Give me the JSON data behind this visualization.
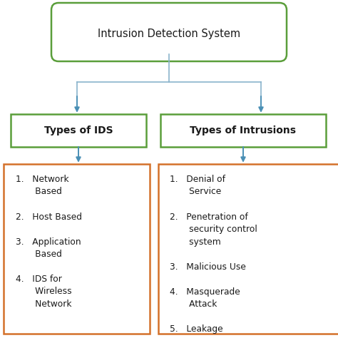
{
  "title": "Intrusion Detection System",
  "green": "#5a9e3a",
  "orange": "#d4712a",
  "blue_line": "#8ab4cc",
  "blue_arrow": "#4a8fb5",
  "black": "#1a1a1a",
  "white": "#ffffff",
  "col1_header": "Types of IDS",
  "col2_header": "Types of Intrusions",
  "left_text": "1.   Network\n       Based\n\n2.   Host Based\n\n3.   Application\n       Based\n\n4.   IDS for\n       Wireless\n       Network",
  "right_text": "1.   Denial of\n       Service\n\n2.   Penetration of\n       security control\n       system\n\n3.   Malicious Use\n\n4.   Masquerade\n       Attack\n\n5.   Leakage",
  "bg": "#ffffff",
  "figsize": [
    4.74,
    4.74
  ],
  "dpi": 100
}
